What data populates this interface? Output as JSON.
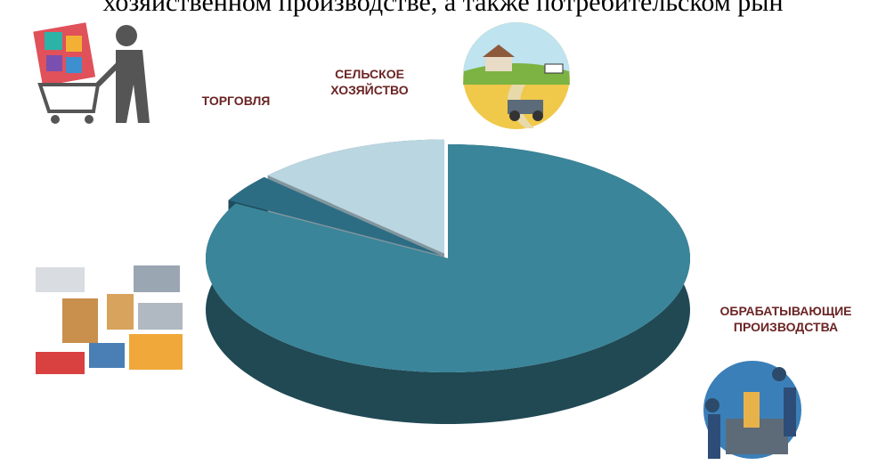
{
  "chart_data": {
    "type": "pie",
    "title": "хозяйственном производстве, а также потребительском рын",
    "categories": [
      "ОБРАБАТЫВАЮЩИЕ ПРОИЗВОДСТВА",
      "ТОРГОВЛЯ",
      "СЕЛЬСКОЕ ХОЗЯЙСТВО"
    ],
    "values": [
      83,
      4,
      13
    ],
    "colors": [
      "#3a8599",
      "#2c6d84",
      "#b9d6e1"
    ]
  }
}
